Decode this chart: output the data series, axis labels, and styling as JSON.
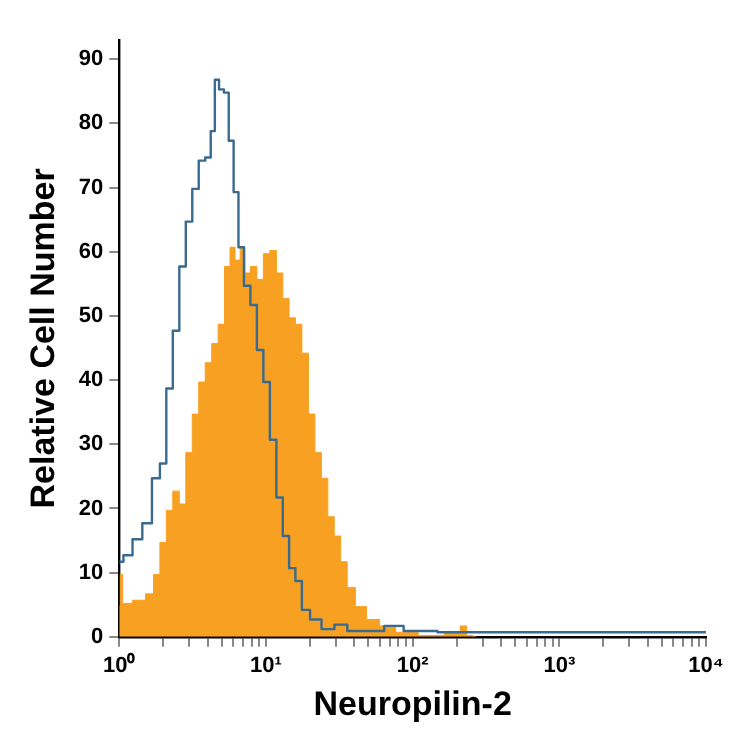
{
  "chart_data": {
    "type": "area",
    "xlabel": "Neuropilin-2",
    "ylabel": "Relative Cell Number",
    "series": [
      {
        "color": "#f7a021",
        "x": [
          1,
          1.03,
          1.08,
          1.4,
          1.63,
          1.8,
          1.99,
          2.2,
          2.44,
          2.7,
          2.99,
          3.31,
          3.66,
          4.06,
          4.49,
          4.96,
          5.49,
          5.9,
          6.41,
          6.94,
          7.45,
          8.24,
          9.13,
          10.1,
          11.2,
          12.4,
          13.7,
          15.1,
          16.7,
          18.5,
          20.5,
          22.7,
          25.1,
          27.8,
          30.7,
          34,
          37.7,
          43.9,
          53.6,
          65.8,
          89.3,
          134,
          201,
          222,
          246,
          272
        ],
        "values": [
          4.7,
          9.7,
          5.2,
          5.7,
          6.7,
          9.7,
          14.7,
          19.7,
          22.7,
          20.7,
          28.7,
          34.7,
          39.7,
          42.7,
          45.7,
          48.7,
          57.7,
          60.7,
          58.7,
          60.7,
          56.7,
          57.7,
          55.7,
          59.7,
          60.2,
          56.7,
          52.7,
          49.7,
          48.7,
          44.2,
          34.7,
          28.7,
          24.7,
          18.7,
          15.7,
          11.7,
          7.7,
          4.7,
          2.7,
          1.7,
          0.7,
          0.2,
          0.7,
          1.7,
          0.2,
          0
        ]
      },
      {
        "type": "step",
        "color": "#3a6b8f",
        "x": [
          1,
          1.14,
          1.33,
          1.55,
          1.8,
          1.99,
          2.2,
          2.44,
          2.7,
          2.99,
          3.31,
          3.66,
          4.06,
          4.35,
          4.62,
          4.96,
          5.38,
          5.78,
          6.27,
          6.73,
          7.45,
          8.24,
          9.13,
          10.1,
          11.2,
          12.4,
          13.7,
          15.1,
          16.7,
          18.5,
          21.6,
          26.5,
          32.4,
          39.7,
          53.6,
          76.5,
          98.6,
          222,
          1690,
          10000
        ],
        "values": [
          11.7,
          12.7,
          15.2,
          17.7,
          24.7,
          27,
          38.7,
          47.7,
          57.7,
          64.7,
          69.8,
          74.2,
          74.7,
          78.8,
          86.8,
          85.3,
          84.8,
          77.3,
          69.3,
          60.7,
          54.7,
          51.7,
          44.7,
          39.7,
          30.7,
          21.7,
          15.7,
          10.7,
          8.7,
          4.2,
          2.7,
          1.2,
          1.9,
          0.9,
          0.9,
          1.7,
          0.9,
          0.7,
          0.7,
          0.7
        ]
      }
    ],
    "log": "x",
    "xlim": [
      1,
      10000
    ],
    "xticks": [
      {
        "value": 1,
        "label": "10⁰"
      },
      {
        "value": 2,
        "label": null
      },
      {
        "value": 3,
        "label": null
      },
      {
        "value": 4,
        "label": null
      },
      {
        "value": 5,
        "label": null
      },
      {
        "value": 6,
        "label": null
      },
      {
        "value": 7,
        "label": null
      },
      {
        "value": 8,
        "label": null
      },
      {
        "value": 9,
        "label": null
      },
      {
        "value": 10,
        "label": "10¹"
      },
      {
        "value": 20,
        "label": null
      },
      {
        "value": 30,
        "label": null
      },
      {
        "value": 40,
        "label": null
      },
      {
        "value": 50,
        "label": null
      },
      {
        "value": 60,
        "label": null
      },
      {
        "value": 70,
        "label": null
      },
      {
        "value": 80,
        "label": null
      },
      {
        "value": 90,
        "label": null
      },
      {
        "value": 100,
        "label": "10²"
      },
      {
        "value": 200,
        "label": null
      },
      {
        "value": 300,
        "label": null
      },
      {
        "value": 400,
        "label": null
      },
      {
        "value": 500,
        "label": null
      },
      {
        "value": 600,
        "label": null
      },
      {
        "value": 700,
        "label": null
      },
      {
        "value": 800,
        "label": null
      },
      {
        "value": 900,
        "label": null
      },
      {
        "value": 1000,
        "label": "10³"
      },
      {
        "value": 2000,
        "label": null
      },
      {
        "value": 3000,
        "label": null
      },
      {
        "value": 4000,
        "label": null
      },
      {
        "value": 5000,
        "label": null
      },
      {
        "value": 6000,
        "label": null
      },
      {
        "value": 7000,
        "label": null
      },
      {
        "value": 8000,
        "label": null
      },
      {
        "value": 9000,
        "label": null
      },
      {
        "value": 10000,
        "label": "10⁴"
      }
    ],
    "ylim": [
      0,
      93
    ],
    "yticks": [
      0,
      10,
      20,
      30,
      40,
      50,
      60,
      70,
      80,
      90
    ],
    "grid": false,
    "legend": false,
    "line_style": "solid",
    "marker": "none"
  }
}
